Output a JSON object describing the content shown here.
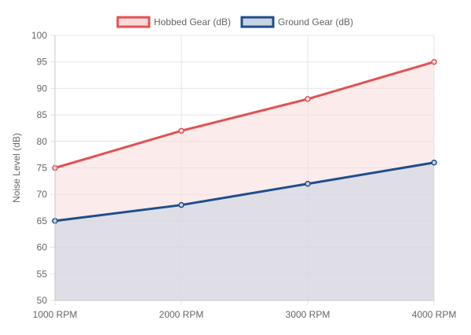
{
  "chart_data": {
    "type": "area",
    "title": "",
    "xlabel": "",
    "ylabel": "Noise Level (dB)",
    "categories": [
      "1000 RPM",
      "2000 RPM",
      "3000 RPM",
      "4000 RPM"
    ],
    "ylim": [
      50,
      100
    ],
    "yticks": [
      50,
      55,
      60,
      65,
      70,
      75,
      80,
      85,
      90,
      95,
      100
    ],
    "grid": true,
    "legend_position": "top-center",
    "series": [
      {
        "name": "Hobbed Gear (dB)",
        "values": [
          75,
          82,
          88,
          95
        ],
        "line_color": "#e05252",
        "fill_color": "#f8dada"
      },
      {
        "name": "Ground Gear (dB)",
        "values": [
          65,
          68,
          72,
          76
        ],
        "line_color": "#1f4e8c",
        "fill_color": "#c9d3e2"
      }
    ]
  }
}
